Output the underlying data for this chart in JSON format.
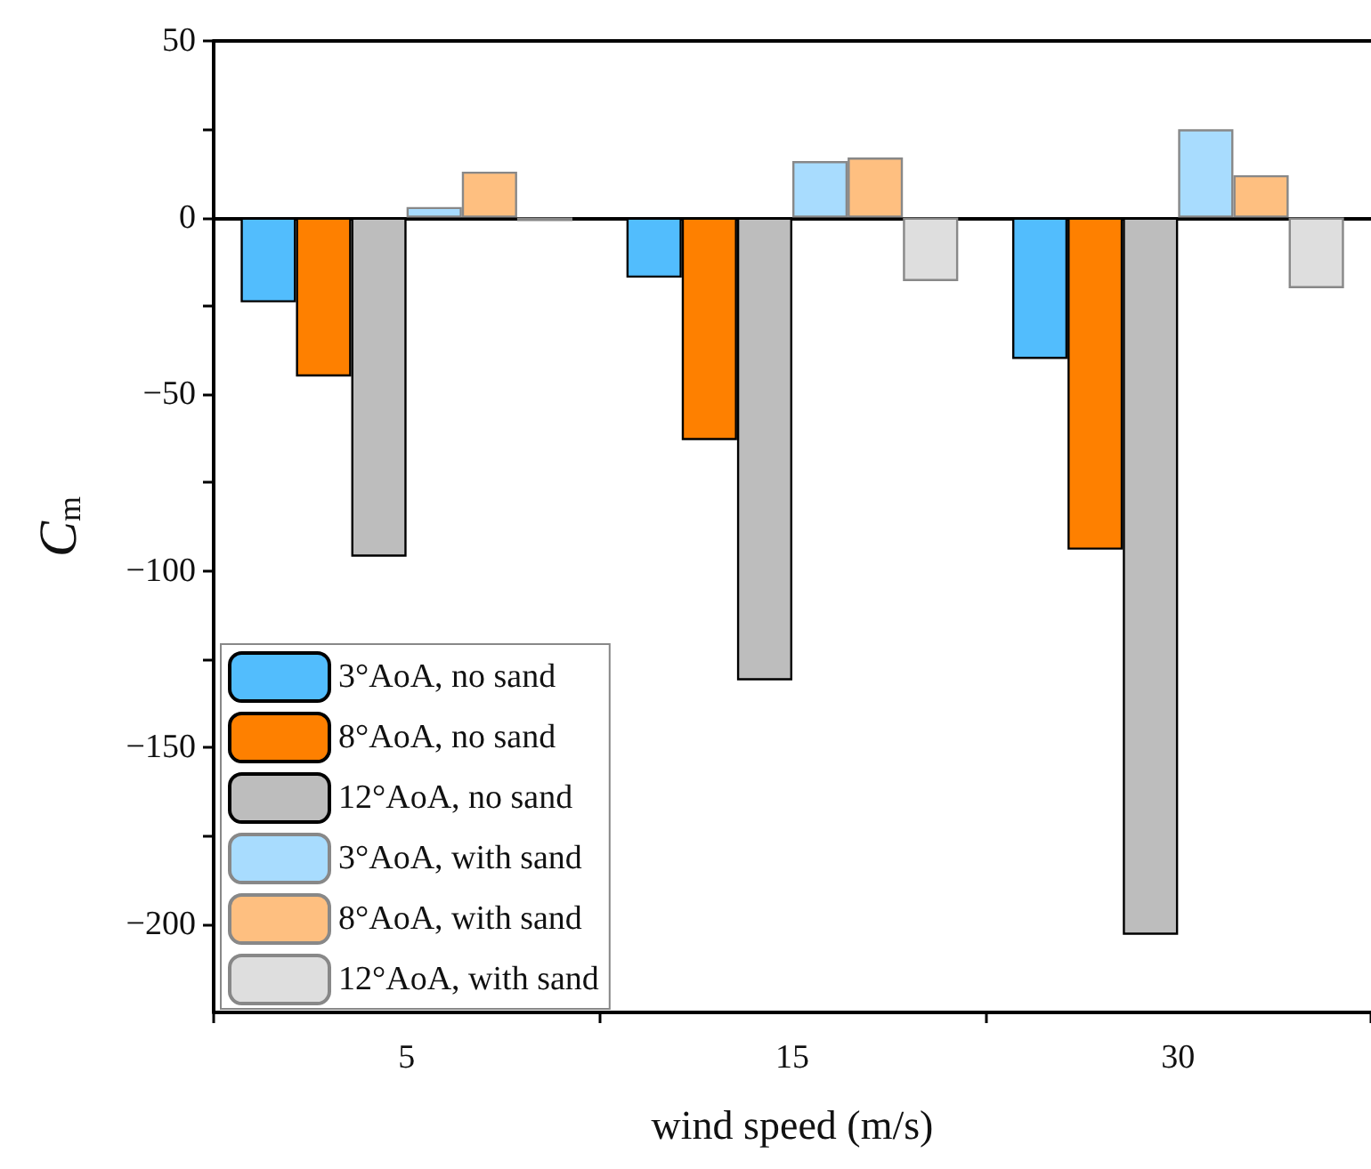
{
  "chart_data": {
    "type": "bar",
    "xlabel": "wind speed (m/s)",
    "ylabel": "C$_{m}$",
    "categories": [
      "5",
      "15",
      "30"
    ],
    "series": [
      {
        "name": "3°AoA, no sand",
        "color": "#52bdfd",
        "values": [
          -24,
          -17,
          -40
        ]
      },
      {
        "name": "8°AoA, no sand",
        "color": "#fe8000",
        "values": [
          -45,
          -63,
          -94
        ]
      },
      {
        "name": "12°AoA, no sand",
        "color": "#bdbdbd",
        "values": [
          -96,
          -131,
          -203
        ]
      },
      {
        "name": "3°AoA, with sand",
        "color": "#a8dcfe",
        "values": [
          3,
          16,
          25
        ]
      },
      {
        "name": "8°AoA, with sand",
        "color": "#febf80",
        "values": [
          13,
          17,
          12
        ]
      },
      {
        "name": "12°AoA, with sand",
        "color": "#dedede",
        "values": [
          -1,
          -18,
          -20
        ]
      }
    ],
    "ylim": [
      -225,
      50
    ],
    "yticks": [
      50,
      {
        "value": 25,
        "label": null
      },
      0,
      {
        "value": -25,
        "label": null
      },
      -50,
      {
        "value": -75,
        "label": null
      },
      -100,
      {
        "value": -125,
        "label": null
      },
      -150,
      {
        "value": -175,
        "label": null
      },
      -200
    ],
    "ref_lines": [
      {
        "axis": "y",
        "value": 0,
        "color": "#000000"
      }
    ],
    "legend": "bottom left"
  }
}
